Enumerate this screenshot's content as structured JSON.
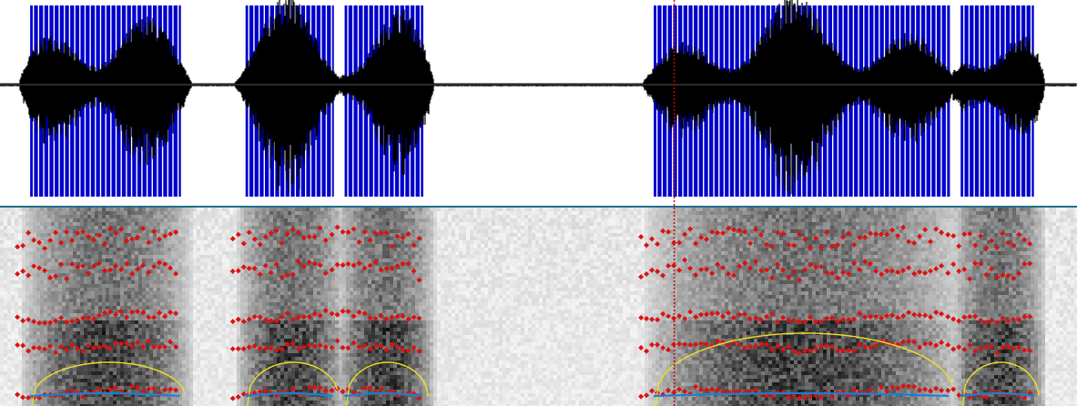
{
  "colors": {
    "background": "#ffffff",
    "waveform": "#000000",
    "pulse_marks": "#0000cc",
    "separator": "#1f6f8b",
    "cursor": "#cc0000",
    "formants": "#dd1111",
    "intensity_contour": "#f0e020",
    "pitch_contour": "#1a7fd6"
  },
  "icons": {
    "cursor": "vertical-dotted-line",
    "formant_point": "diamond"
  },
  "voiced_segments": [
    {
      "start": 0.028,
      "end": 0.168
    },
    {
      "start": 0.228,
      "end": 0.31
    },
    {
      "start": 0.32,
      "end": 0.393
    },
    {
      "start": 0.607,
      "end": 0.882
    },
    {
      "start": 0.892,
      "end": 0.96
    }
  ],
  "cursor_time": 0.626,
  "pulse_spacing": 0.0048
}
